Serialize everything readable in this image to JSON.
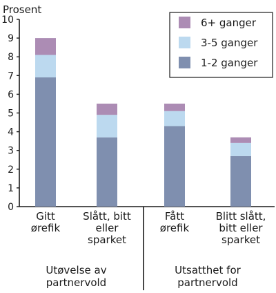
{
  "chart_data": {
    "type": "bar",
    "stacked": true,
    "ylabel": "Prosent",
    "ylim": [
      0,
      10
    ],
    "yticks": [
      0,
      1,
      2,
      3,
      4,
      5,
      6,
      7,
      8,
      9,
      10
    ],
    "grid": false,
    "legend_position": "top-right",
    "categories": [
      [
        "Gitt",
        "ørefik"
      ],
      [
        "Slått, bitt",
        "eller",
        "sparket"
      ],
      [
        "Fått",
        "ørefik"
      ],
      [
        "Blitt slått,",
        "bitt eller",
        "sparket"
      ]
    ],
    "groups": [
      {
        "label": [
          "Utøvelse av",
          "partnervold"
        ],
        "categories": [
          0,
          1
        ]
      },
      {
        "label": [
          "Utsatthet for",
          "partnervold"
        ],
        "categories": [
          2,
          3
        ]
      }
    ],
    "series": [
      {
        "name": "1-2 ganger",
        "color": "#7f8faf",
        "values": [
          6.9,
          3.7,
          4.3,
          2.7
        ]
      },
      {
        "name": "3-5 ganger",
        "color": "#bcd9ef",
        "values": [
          1.2,
          1.2,
          0.8,
          0.7
        ]
      },
      {
        "name": "6+ ganger",
        "color": "#ac8cb4",
        "values": [
          0.9,
          0.6,
          0.4,
          0.3
        ]
      }
    ],
    "legend_order": [
      2,
      1,
      0
    ]
  }
}
